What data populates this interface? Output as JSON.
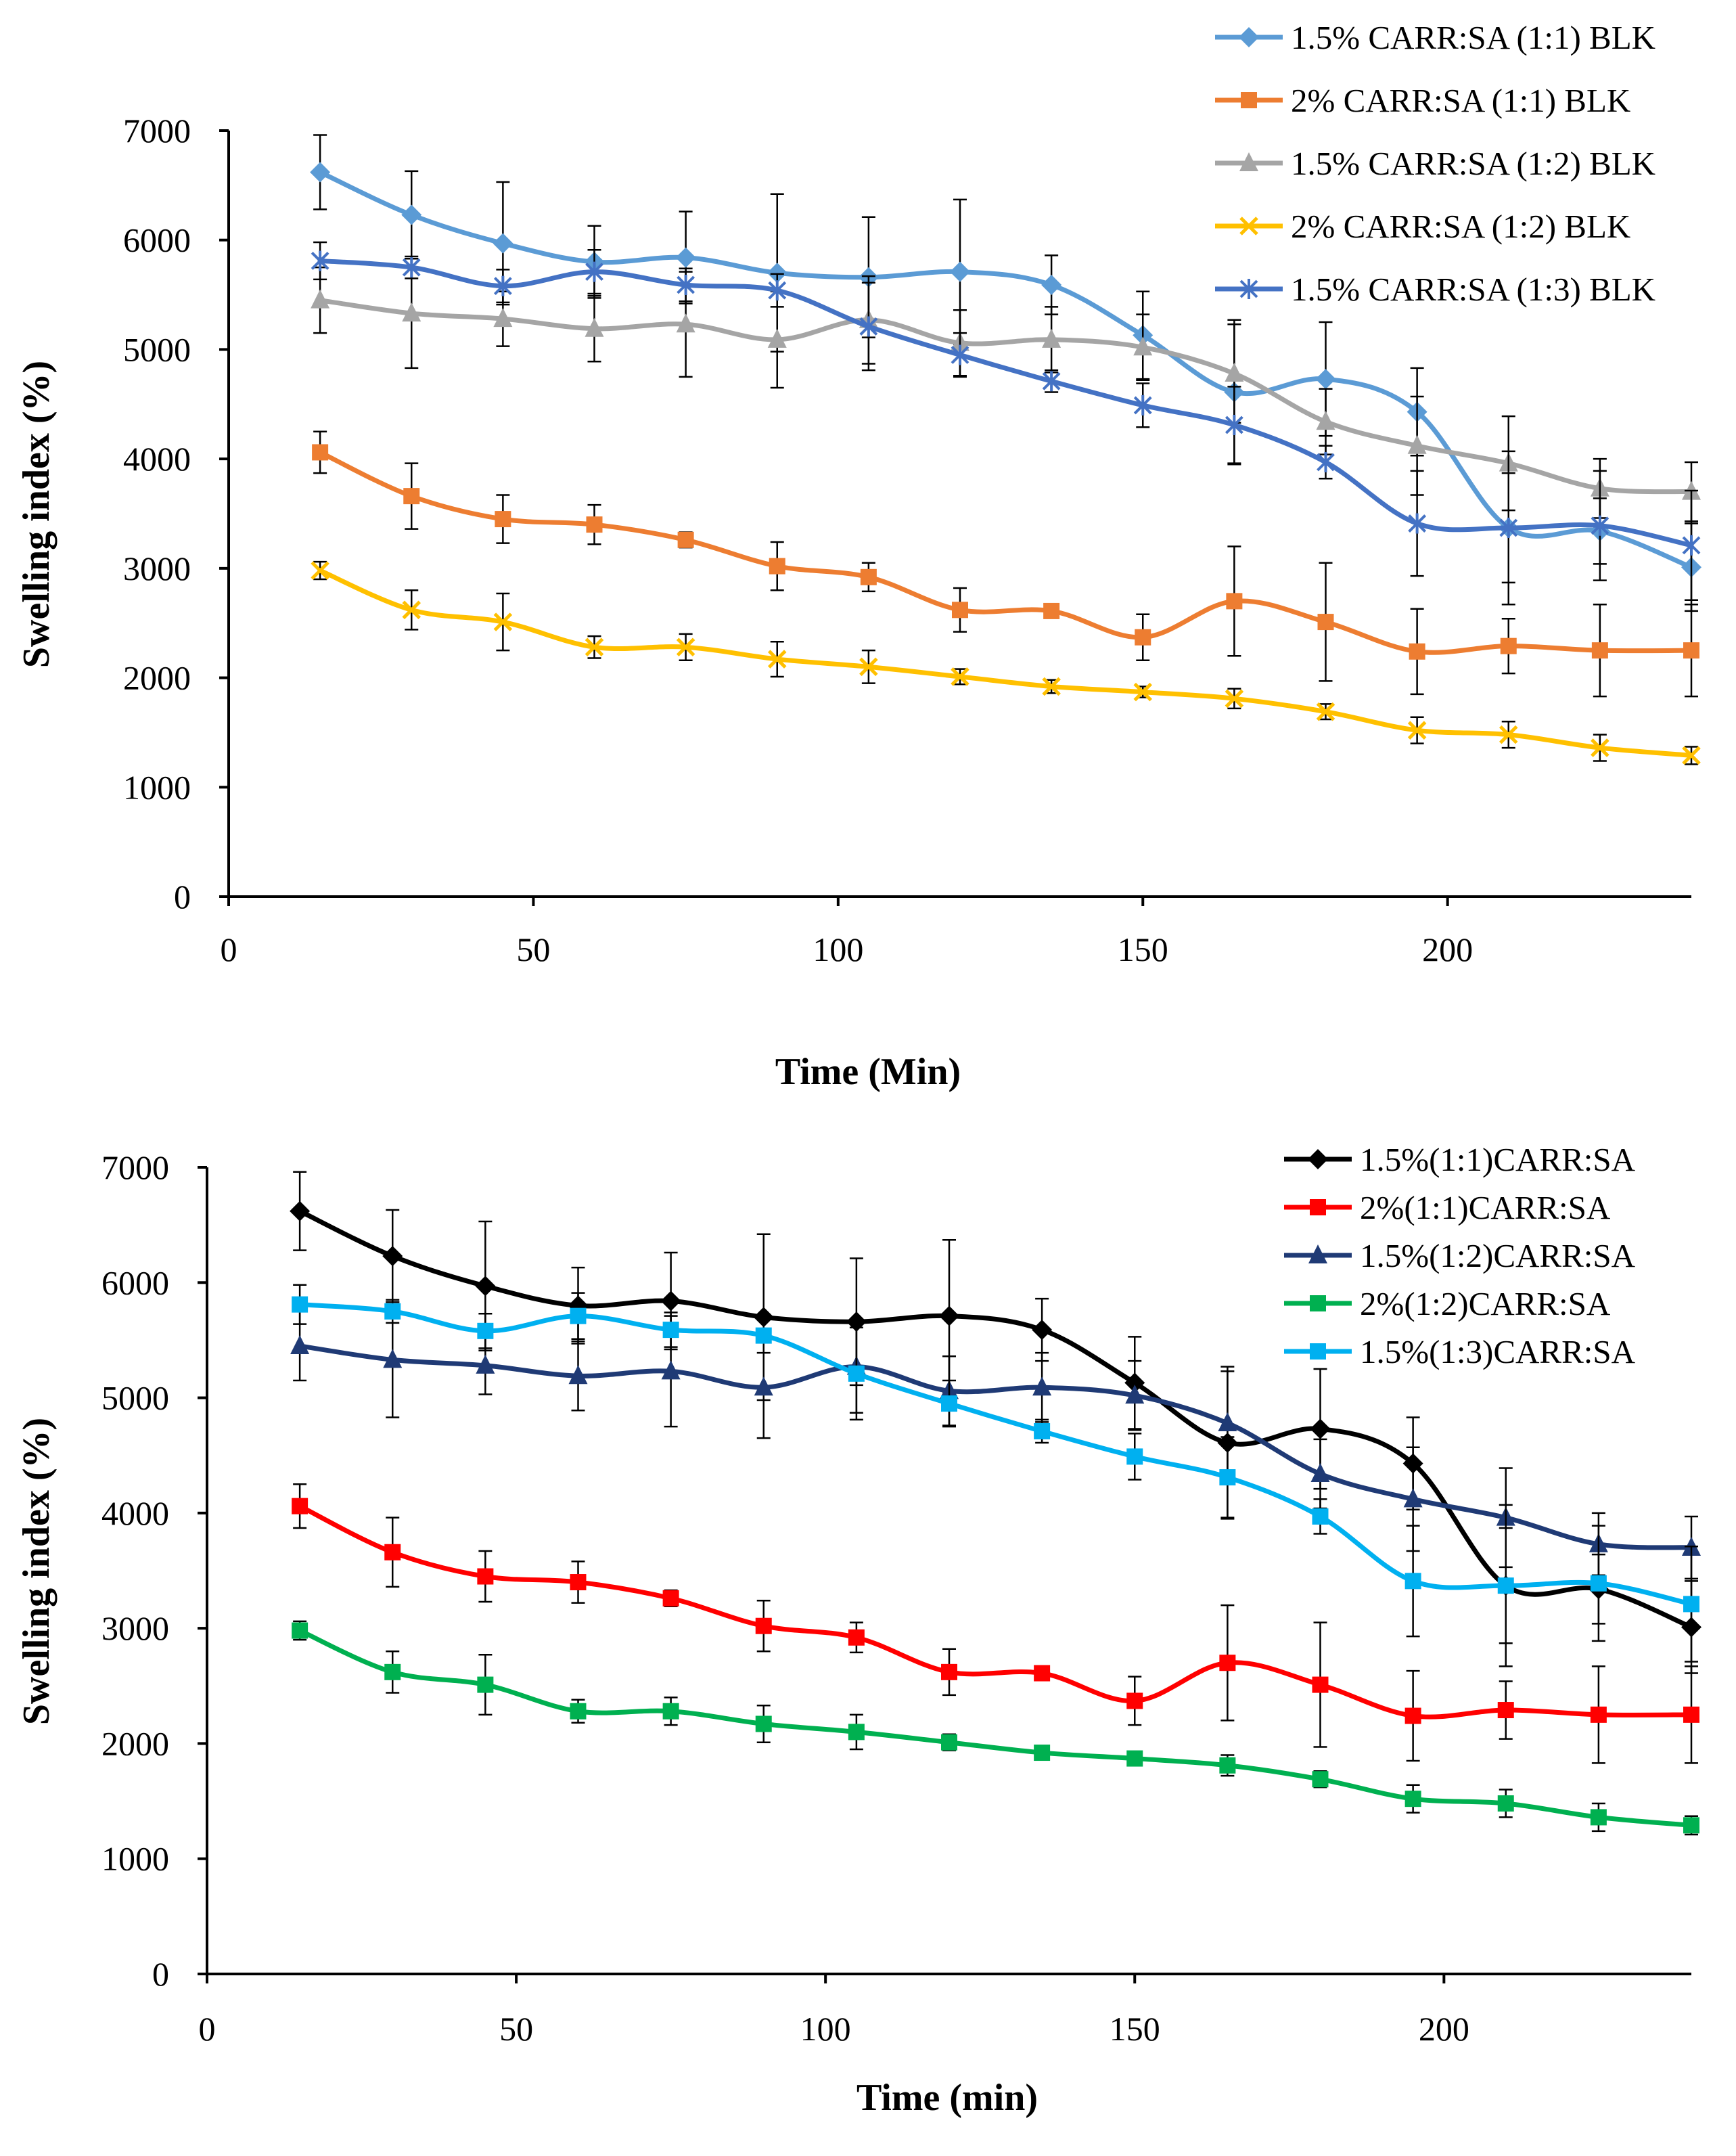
{
  "chart_data": [
    {
      "type": "line",
      "title": "",
      "xlabel": "Time (Min)",
      "ylabel": "Swelling index (%)",
      "xlim": [
        0,
        240
      ],
      "ylim": [
        0,
        7000
      ],
      "xticks": [
        0,
        50,
        100,
        150,
        200
      ],
      "yticks": [
        0,
        1000,
        2000,
        3000,
        4000,
        5000,
        6000,
        7000
      ],
      "legend_position": "top-right",
      "x": [
        15,
        30,
        45,
        60,
        75,
        90,
        105,
        120,
        135,
        150,
        165,
        180,
        195,
        210,
        225,
        240
      ],
      "series": [
        {
          "name": "1.5% CARR:SA (1:1) BLK",
          "color": "#5B9BD5",
          "marker": "diamond",
          "values": [
            6620,
            6230,
            5970,
            5800,
            5840,
            5700,
            5660,
            5710,
            5590,
            5130,
            4610,
            4730,
            4430,
            3370,
            3340,
            3010
          ],
          "errors": [
            340,
            400,
            560,
            330,
            420,
            720,
            550,
            660,
            270,
            400,
            660,
            520,
            400,
            500,
            300,
            400
          ]
        },
        {
          "name": "2% CARR:SA (1:1) BLK",
          "color": "#ED7D31",
          "marker": "square",
          "values": [
            4060,
            3660,
            3450,
            3400,
            3260,
            3020,
            2920,
            2620,
            2610,
            2370,
            2700,
            2510,
            2240,
            2290,
            2250,
            2250
          ],
          "errors": [
            190,
            300,
            220,
            180,
            70,
            220,
            130,
            200,
            60,
            210,
            500,
            540,
            390,
            250,
            420,
            420
          ]
        },
        {
          "name": "1.5% CARR:SA (1:2) BLK",
          "color": "#A5A5A5",
          "marker": "triangle",
          "values": [
            5450,
            5330,
            5280,
            5190,
            5230,
            5090,
            5270,
            5060,
            5090,
            5020,
            4780,
            4340,
            4120,
            3960,
            3730,
            3700
          ],
          "errors": [
            300,
            500,
            250,
            300,
            480,
            440,
            400,
            300,
            300,
            300,
            450,
            300,
            450,
            430,
            270,
            270
          ]
        },
        {
          "name": "2% CARR:SA (1:2) BLK",
          "color": "#FFC000",
          "marker": "x",
          "values": [
            2980,
            2620,
            2510,
            2280,
            2280,
            2170,
            2100,
            2010,
            1920,
            1870,
            1810,
            1690,
            1520,
            1480,
            1360,
            1290
          ],
          "errors": [
            80,
            180,
            260,
            100,
            120,
            160,
            150,
            70,
            60,
            50,
            90,
            70,
            120,
            120,
            120,
            80
          ]
        },
        {
          "name": "1.5% CARR:SA (1:3) BLK",
          "color": "#4472C4",
          "marker": "star",
          "values": [
            5810,
            5750,
            5580,
            5710,
            5590,
            5540,
            5210,
            4950,
            4710,
            4490,
            4310,
            3970,
            3410,
            3370,
            3390,
            3210
          ],
          "errors": [
            170,
            100,
            150,
            200,
            150,
            150,
            400,
            200,
            100,
            200,
            350,
            150,
            480,
            700,
            500,
            500
          ]
        }
      ]
    },
    {
      "type": "line",
      "title": "",
      "xlabel": "Time (min)",
      "ylabel": "Swelling index (%)",
      "xlim": [
        0,
        240
      ],
      "ylim": [
        0,
        7000
      ],
      "xticks": [
        0,
        50,
        100,
        150,
        200
      ],
      "yticks": [
        0,
        1000,
        2000,
        3000,
        4000,
        5000,
        6000,
        7000
      ],
      "legend_position": "top-right",
      "x": [
        15,
        30,
        45,
        60,
        75,
        90,
        105,
        120,
        135,
        150,
        165,
        180,
        195,
        210,
        225,
        240
      ],
      "series": [
        {
          "name": "1.5%(1:1)CARR:SA",
          "color": "#000000",
          "marker": "diamond",
          "values": [
            6620,
            6230,
            5970,
            5800,
            5840,
            5700,
            5660,
            5710,
            5590,
            5130,
            4610,
            4730,
            4430,
            3370,
            3340,
            3010
          ],
          "errors": [
            340,
            400,
            560,
            330,
            420,
            720,
            550,
            660,
            270,
            400,
            660,
            520,
            400,
            500,
            300,
            400
          ]
        },
        {
          "name": "2%(1:1)CARR:SA",
          "color": "#FF0000",
          "marker": "square",
          "values": [
            4060,
            3660,
            3450,
            3400,
            3260,
            3020,
            2920,
            2620,
            2610,
            2370,
            2700,
            2510,
            2240,
            2290,
            2250,
            2250
          ],
          "errors": [
            190,
            300,
            220,
            180,
            70,
            220,
            130,
            200,
            60,
            210,
            500,
            540,
            390,
            250,
            420,
            420
          ]
        },
        {
          "name": "1.5%(1:2)CARR:SA",
          "color": "#1F3A75",
          "marker": "triangle",
          "values": [
            5450,
            5330,
            5280,
            5190,
            5230,
            5090,
            5270,
            5060,
            5090,
            5020,
            4780,
            4340,
            4120,
            3960,
            3730,
            3700
          ],
          "errors": [
            300,
            500,
            250,
            300,
            480,
            440,
            400,
            300,
            300,
            300,
            450,
            300,
            450,
            430,
            270,
            270
          ]
        },
        {
          "name": "2%(1:2)CARR:SA",
          "color": "#00B050",
          "marker": "square",
          "values": [
            2980,
            2620,
            2510,
            2280,
            2280,
            2170,
            2100,
            2010,
            1920,
            1870,
            1810,
            1690,
            1520,
            1480,
            1360,
            1290
          ],
          "errors": [
            80,
            180,
            260,
            100,
            120,
            160,
            150,
            70,
            60,
            50,
            90,
            70,
            120,
            120,
            120,
            80
          ]
        },
        {
          "name": "1.5%(1:3)CARR:SA",
          "color": "#00B0F0",
          "marker": "square",
          "values": [
            5810,
            5750,
            5580,
            5710,
            5590,
            5540,
            5210,
            4950,
            4710,
            4490,
            4310,
            3970,
            3410,
            3370,
            3390,
            3210
          ],
          "errors": [
            170,
            100,
            150,
            200,
            150,
            150,
            400,
            200,
            100,
            200,
            350,
            150,
            480,
            700,
            500,
            500
          ]
        }
      ]
    }
  ]
}
